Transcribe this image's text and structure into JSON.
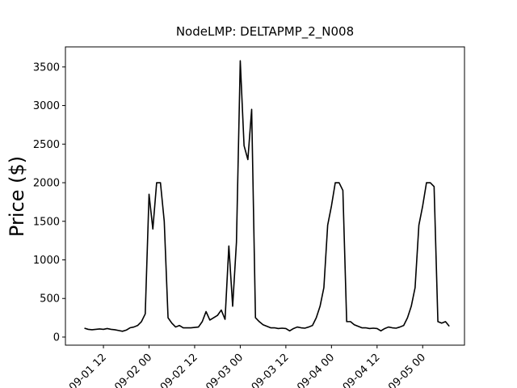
{
  "chart_data": {
    "type": "line",
    "title": "NodeLMP: DELTAPMP_2_N008",
    "y_label": "Price ($)",
    "x": [
      "09-01 07",
      "09-01 08",
      "09-01 09",
      "09-01 10",
      "09-01 11",
      "09-01 12",
      "09-01 13",
      "09-01 14",
      "09-01 15",
      "09-01 16",
      "09-01 17",
      "09-01 18",
      "09-01 19",
      "09-01 20",
      "09-01 21",
      "09-01 22",
      "09-01 23",
      "09-02 00",
      "09-02 01",
      "09-02 02",
      "09-02 03",
      "09-02 04",
      "09-02 05",
      "09-02 06",
      "09-02 07",
      "09-02 08",
      "09-02 09",
      "09-02 10",
      "09-02 11",
      "09-02 12",
      "09-02 13",
      "09-02 14",
      "09-02 15",
      "09-02 16",
      "09-02 17",
      "09-02 18",
      "09-02 19",
      "09-02 20",
      "09-02 21",
      "09-02 22",
      "09-02 23",
      "09-03 00",
      "09-03 01",
      "09-03 02",
      "09-03 03",
      "09-03 04",
      "09-03 05",
      "09-03 06",
      "09-03 07",
      "09-03 08",
      "09-03 09",
      "09-03 10",
      "09-03 11",
      "09-03 12",
      "09-03 13",
      "09-03 14",
      "09-03 15",
      "09-03 16",
      "09-03 17",
      "09-03 18",
      "09-03 19",
      "09-03 20",
      "09-03 21",
      "09-03 22",
      "09-03 23",
      "09-04 00",
      "09-04 01",
      "09-04 02",
      "09-04 03",
      "09-04 04",
      "09-04 05",
      "09-04 06",
      "09-04 07",
      "09-04 08",
      "09-04 09",
      "09-04 10",
      "09-04 11",
      "09-04 12",
      "09-04 13",
      "09-04 14",
      "09-04 15",
      "09-04 16",
      "09-04 17",
      "09-04 18",
      "09-04 19",
      "09-04 20",
      "09-04 21",
      "09-04 22",
      "09-04 23",
      "09-05 00",
      "09-05 01",
      "09-05 02",
      "09-05 03",
      "09-05 04",
      "09-05 05",
      "09-05 06",
      "09-05 07"
    ],
    "series": [
      {
        "color": "#000000",
        "values": [
          115,
          100,
          95,
          100,
          105,
          100,
          110,
          100,
          95,
          85,
          75,
          90,
          120,
          130,
          150,
          200,
          300,
          1850,
          1400,
          2000,
          2000,
          1500,
          250,
          180,
          130,
          150,
          120,
          120,
          120,
          125,
          130,
          200,
          330,
          220,
          250,
          280,
          350,
          230,
          1180,
          400,
          1230,
          3580,
          2480,
          2300,
          2950,
          250,
          200,
          160,
          140,
          120,
          120,
          110,
          115,
          110,
          80,
          110,
          130,
          120,
          115,
          130,
          150,
          250,
          400,
          640,
          1450,
          1700,
          2000,
          2000,
          1900,
          200,
          200,
          160,
          140,
          120,
          120,
          110,
          115,
          110,
          80,
          110,
          130,
          120,
          115,
          130,
          150,
          250,
          400,
          640,
          1450,
          1700,
          2000,
          2000,
          1950,
          200,
          180,
          200,
          140
        ]
      }
    ],
    "xlim": [
      "09-01 02",
      "09-05 11"
    ],
    "xticks": [
      "09-01 12",
      "09-02 00",
      "09-02 12",
      "09-03 00",
      "09-03 12",
      "09-04 00",
      "09-04 12",
      "09-05 00"
    ],
    "ylim": [
      -105,
      3760
    ],
    "yticks": [
      0,
      500,
      1000,
      1500,
      2000,
      2500,
      3000,
      3500
    ]
  }
}
